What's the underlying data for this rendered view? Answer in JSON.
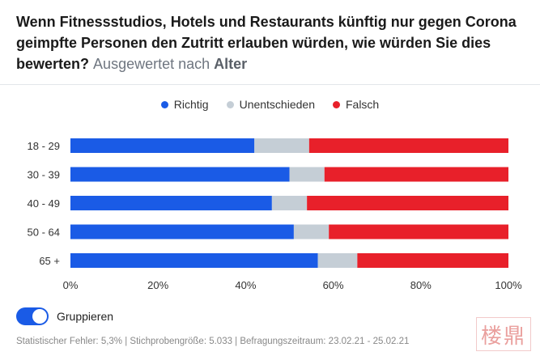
{
  "header": {
    "title": "Wenn Fitnessstudios, Hotels und Restaurants künftig nur gegen Corona geimpfte Personen den Zutritt erlauben würden, wie würden Sie dies bewerten?",
    "subtitle_prefix": "Ausgewertet nach",
    "subtitle_field": "Alter"
  },
  "legend": [
    {
      "label": "Richtig",
      "color": "#1a5be6"
    },
    {
      "label": "Unentschieden",
      "color": "#c5ced6"
    },
    {
      "label": "Falsch",
      "color": "#e8202a"
    }
  ],
  "chart_data": {
    "type": "bar",
    "orientation": "horizontal",
    "stacked": true,
    "categories": [
      "18 - 29",
      "30 - 39",
      "40 - 49",
      "50 - 64",
      "65 +"
    ],
    "series": [
      {
        "name": "Richtig",
        "color": "#1a5be6",
        "values": [
          42,
          50,
          46,
          51,
          56.5
        ]
      },
      {
        "name": "Unentschieden",
        "color": "#c5ced6",
        "values": [
          12.5,
          8,
          8,
          8,
          9
        ]
      },
      {
        "name": "Falsch",
        "color": "#e8202a",
        "values": [
          45.5,
          42,
          46,
          41,
          34.5
        ]
      }
    ],
    "xlim": [
      0,
      100
    ],
    "xticks": [
      "0%",
      "20%",
      "40%",
      "60%",
      "80%",
      "100%"
    ],
    "legend_position": "top-center",
    "grid": false
  },
  "controls": {
    "group_toggle_label": "Gruppieren",
    "group_toggle_on": true
  },
  "footer": {
    "text": "Statistischer Fehler: 5,3% | Stichprobengröße: 5.033 | Befragungszeitraum: 23.02.21 - 25.02.21"
  },
  "watermark": {
    "text": "楼 鼎"
  }
}
